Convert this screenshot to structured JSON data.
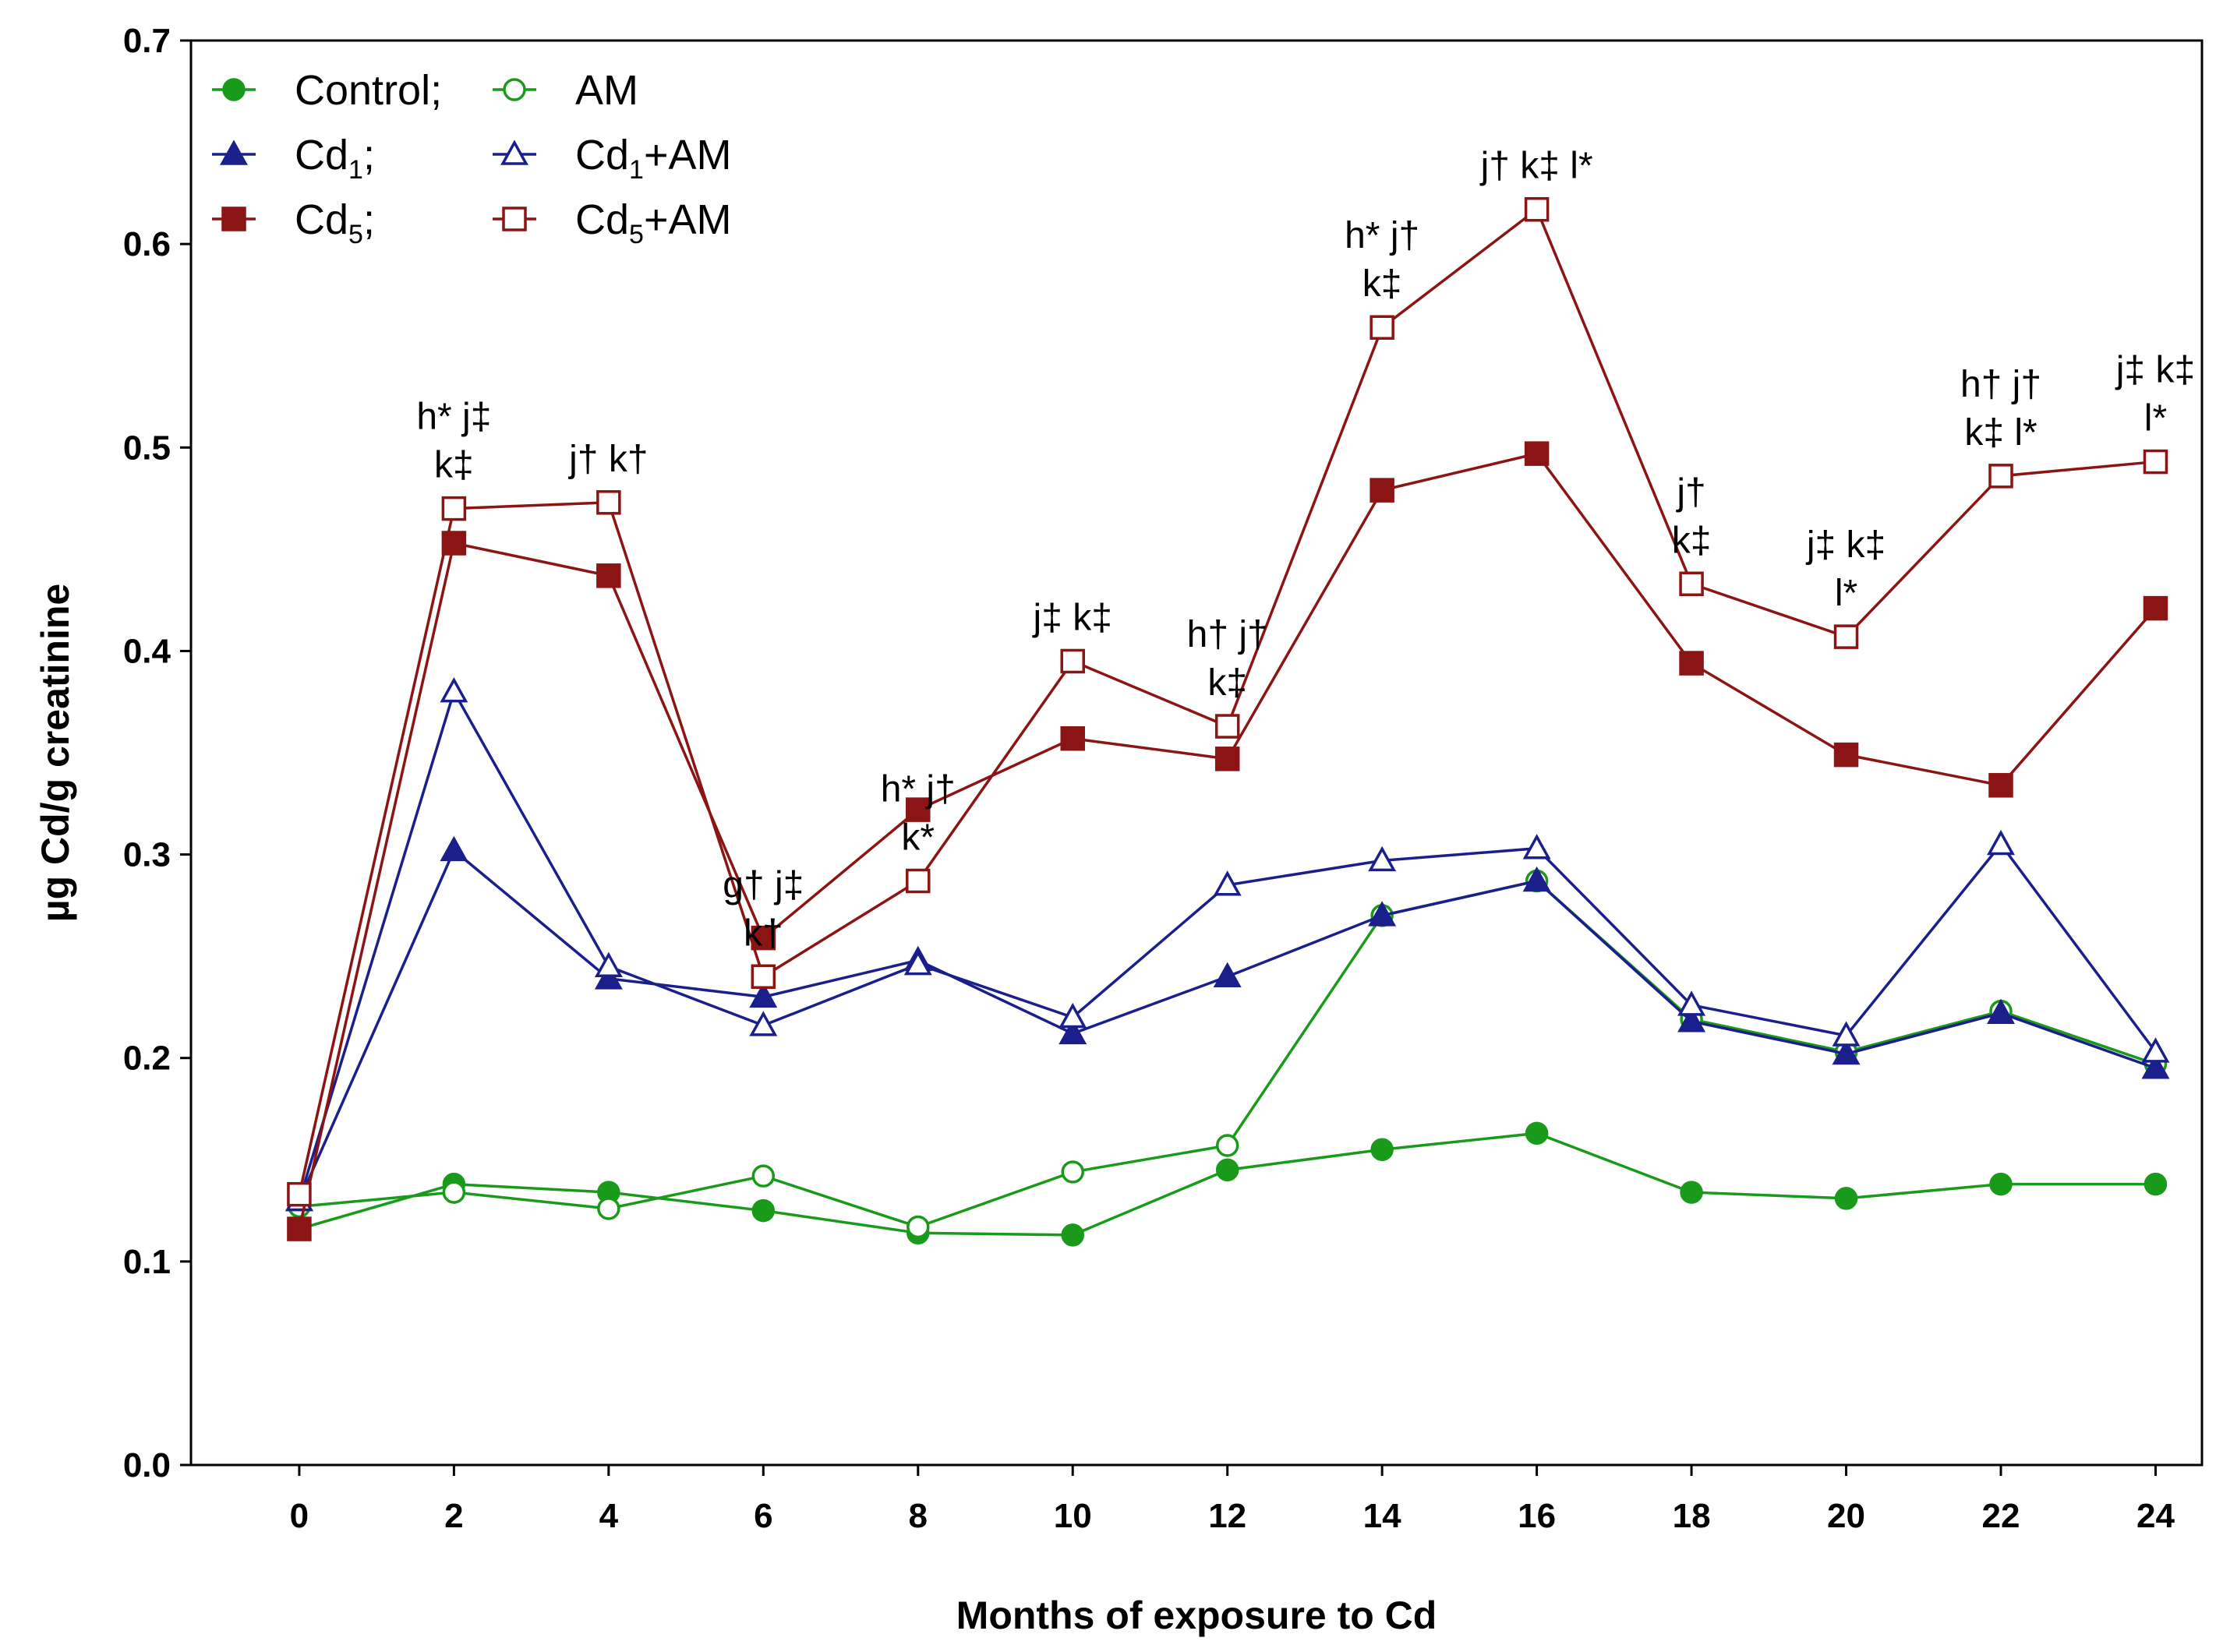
{
  "chart_data": {
    "type": "line",
    "xlabel": "Months of exposure to Cd",
    "ylabel": "µg Cd/g creatinine",
    "xlim": [
      -1.4,
      24.6
    ],
    "ylim": [
      0.0,
      0.7
    ],
    "x_ticks": [
      0,
      2,
      4,
      6,
      8,
      10,
      12,
      14,
      16,
      18,
      20,
      22,
      24
    ],
    "y_ticks": [
      "0.0",
      "0.1",
      "0.2",
      "0.3",
      "0.4",
      "0.5",
      "0.6",
      "0.7"
    ],
    "x": [
      0,
      2,
      4,
      6,
      8,
      10,
      12,
      14,
      16,
      18,
      20,
      22,
      24
    ],
    "series": [
      {
        "name": "Control",
        "color": "#1a9a1a",
        "marker": "circle",
        "filled": true,
        "values": [
          0.116,
          0.138,
          0.134,
          0.125,
          0.114,
          0.113,
          0.145,
          0.155,
          0.163,
          0.134,
          0.131,
          0.138,
          0.138
        ]
      },
      {
        "name": "AM",
        "color": "#1a9a1a",
        "marker": "circle",
        "filled": false,
        "values": [
          0.127,
          0.134,
          0.126,
          0.142,
          0.117,
          0.144,
          0.157,
          0.27,
          0.287,
          0.219,
          0.203,
          0.223,
          0.197
        ]
      },
      {
        "name": "Cd1",
        "color": "#1a1f8c",
        "marker": "triangle",
        "filled": true,
        "values": [
          0.13,
          0.302,
          0.239,
          0.23,
          0.248,
          0.212,
          0.24,
          0.27,
          0.287,
          0.218,
          0.202,
          0.222,
          0.195
        ]
      },
      {
        "name": "Cd1+AM",
        "color": "#1a1f8c",
        "marker": "triangle",
        "filled": false,
        "values": [
          0.13,
          0.38,
          0.245,
          0.216,
          0.246,
          0.22,
          0.285,
          0.297,
          0.303,
          0.226,
          0.211,
          0.305,
          0.203
        ]
      },
      {
        "name": "Cd5",
        "color": "#8b1414",
        "marker": "square",
        "filled": true,
        "values": [
          0.116,
          0.453,
          0.437,
          0.259,
          0.322,
          0.357,
          0.347,
          0.479,
          0.497,
          0.394,
          0.349,
          0.334,
          0.421
        ]
      },
      {
        "name": "Cd5+AM",
        "color": "#8b1414",
        "marker": "square",
        "filled": false,
        "values": [
          0.133,
          0.47,
          0.473,
          0.24,
          0.287,
          0.395,
          0.363,
          0.559,
          0.617,
          0.433,
          0.407,
          0.486,
          0.493
        ]
      }
    ],
    "legend": {
      "placement": "top-left",
      "rows": [
        [
          {
            "series": 0,
            "label": "Control;",
            "sub": ""
          },
          {
            "series": 1,
            "label": "AM",
            "sub": ""
          }
        ],
        [
          {
            "series": 2,
            "label": "Cd",
            "sub": "1",
            "suffix": ";"
          },
          {
            "series": 3,
            "label": "Cd",
            "sub": "1",
            "suffix": "+AM"
          }
        ],
        [
          {
            "series": 4,
            "label": "Cd",
            "sub": "5",
            "suffix": ";"
          },
          {
            "series": 5,
            "label": "Cd",
            "sub": "5",
            "suffix": "+AM"
          }
        ]
      ]
    },
    "annotations": [
      {
        "x": 2,
        "lines": [
          "h* j‡",
          "k‡"
        ]
      },
      {
        "x": 4,
        "lines": [
          "j† k†"
        ]
      },
      {
        "x": 6,
        "lines": [
          "g† j‡",
          "k†"
        ]
      },
      {
        "x": 8,
        "lines": [
          "h* j†",
          "k*"
        ]
      },
      {
        "x": 10,
        "lines": [
          "j‡ k‡"
        ]
      },
      {
        "x": 12,
        "lines": [
          "h† j†",
          "k‡"
        ]
      },
      {
        "x": 14,
        "lines": [
          "h* j†",
          "k‡"
        ]
      },
      {
        "x": 16,
        "lines": [
          "j† k‡ l*"
        ]
      },
      {
        "x": 18,
        "lines": [
          "j†",
          "k‡"
        ]
      },
      {
        "x": 20,
        "lines": [
          "j‡ k‡",
          "l*"
        ]
      },
      {
        "x": 22,
        "lines": [
          "h† j†",
          "k‡ l*"
        ]
      },
      {
        "x": 24,
        "lines": [
          "j‡ k‡",
          "l*"
        ]
      }
    ]
  }
}
